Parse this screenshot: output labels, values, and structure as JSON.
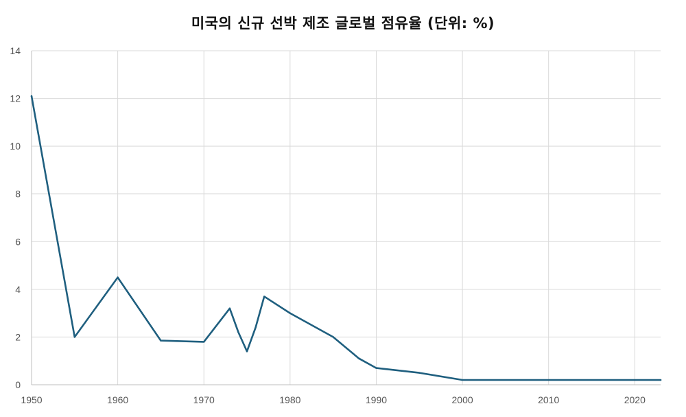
{
  "chart_data": {
    "type": "line",
    "title": "미국의 신규 선박 제조 글로벌 점유율 (단위: %)",
    "xlabel": "",
    "ylabel": "",
    "xlim": [
      1950,
      2023
    ],
    "ylim": [
      0,
      14
    ],
    "x_ticks": [
      1950,
      1960,
      1970,
      1980,
      1990,
      2000,
      2010,
      2020
    ],
    "y_ticks": [
      0,
      2,
      4,
      6,
      8,
      10,
      12,
      14
    ],
    "grid": true,
    "legend": "none",
    "series": [
      {
        "color": "#1f5f7f",
        "points": [
          [
            1950,
            12.1
          ],
          [
            1955,
            2.0
          ],
          [
            1960,
            4.5
          ],
          [
            1965,
            1.85
          ],
          [
            1970,
            1.8
          ],
          [
            1973,
            3.2
          ],
          [
            1974,
            2.2
          ],
          [
            1975,
            1.4
          ],
          [
            1976,
            2.4
          ],
          [
            1977,
            3.7
          ],
          [
            1980,
            3.0
          ],
          [
            1985,
            2.0
          ],
          [
            1988,
            1.1
          ],
          [
            1990,
            0.7
          ],
          [
            1995,
            0.5
          ],
          [
            2000,
            0.2
          ],
          [
            2010,
            0.2
          ],
          [
            2020,
            0.2
          ],
          [
            2023,
            0.2
          ]
        ]
      }
    ]
  }
}
